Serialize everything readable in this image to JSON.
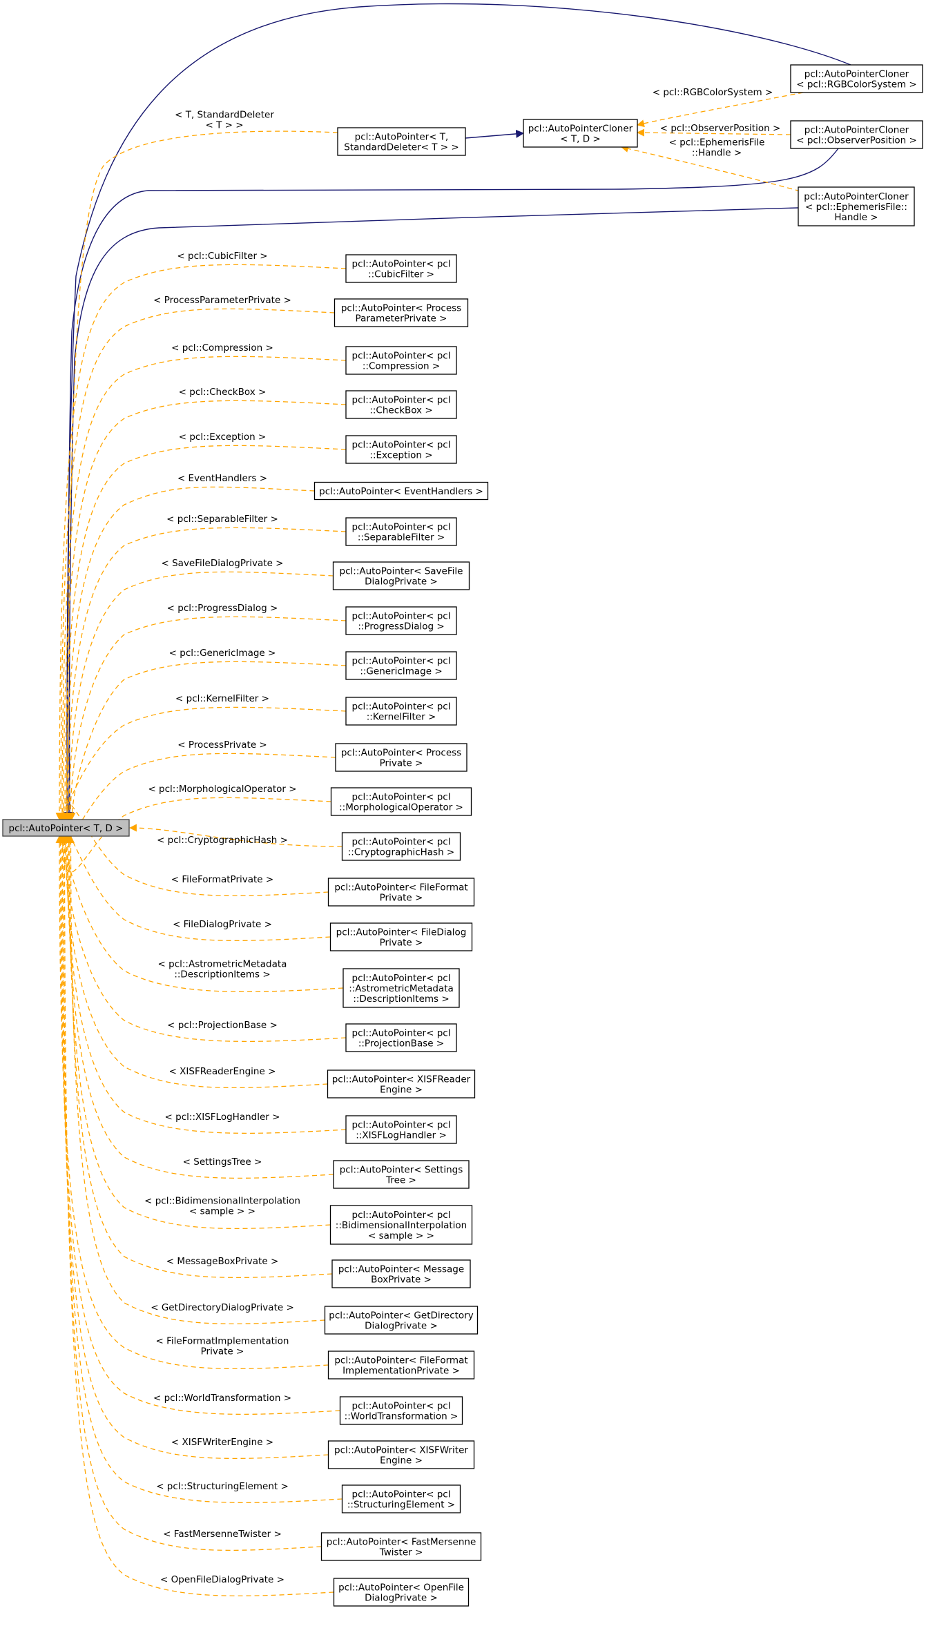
{
  "root": {
    "label": "pcl::AutoPointer< T, D >"
  },
  "cloner_base": {
    "lines": [
      "pcl::AutoPointerCloner",
      "< T, D >"
    ]
  },
  "standard_deleter": {
    "lines": [
      "pcl::AutoPointer< T,",
      "StandardDeleter< T > >"
    ],
    "edge_label": [
      "< T, StandardDeleter",
      "< T > >"
    ]
  },
  "cloners": [
    {
      "lines": [
        "pcl::AutoPointerCloner",
        "< pcl::RGBColorSystem >"
      ],
      "edge_label": [
        "< pcl::RGBColorSystem >"
      ]
    },
    {
      "lines": [
        "pcl::AutoPointerCloner",
        "< pcl::ObserverPosition >"
      ],
      "edge_label": [
        "< pcl::ObserverPosition >"
      ]
    },
    {
      "lines": [
        "pcl::AutoPointerCloner",
        "< pcl::EphemerisFile::",
        "Handle >"
      ],
      "edge_label": [
        "< pcl::EphemerisFile",
        "::Handle >"
      ]
    }
  ],
  "specializations": [
    {
      "lines": [
        "pcl::AutoPointer< pcl",
        "::CubicFilter >"
      ],
      "edge_label": [
        "< pcl::CubicFilter >"
      ]
    },
    {
      "lines": [
        "pcl::AutoPointer< Process",
        "ParameterPrivate >"
      ],
      "edge_label": [
        "< ProcessParameterPrivate >"
      ]
    },
    {
      "lines": [
        "pcl::AutoPointer< pcl",
        "::Compression >"
      ],
      "edge_label": [
        "< pcl::Compression >"
      ]
    },
    {
      "lines": [
        "pcl::AutoPointer< pcl",
        "::CheckBox >"
      ],
      "edge_label": [
        "< pcl::CheckBox >"
      ]
    },
    {
      "lines": [
        "pcl::AutoPointer< pcl",
        "::Exception >"
      ],
      "edge_label": [
        "< pcl::Exception >"
      ]
    },
    {
      "lines": [
        "pcl::AutoPointer< EventHandlers >"
      ],
      "edge_label": [
        "< EventHandlers >"
      ]
    },
    {
      "lines": [
        "pcl::AutoPointer< pcl",
        "::SeparableFilter >"
      ],
      "edge_label": [
        "< pcl::SeparableFilter >"
      ]
    },
    {
      "lines": [
        "pcl::AutoPointer< SaveFile",
        "DialogPrivate >"
      ],
      "edge_label": [
        "< SaveFileDialogPrivate >"
      ]
    },
    {
      "lines": [
        "pcl::AutoPointer< pcl",
        "::ProgressDialog >"
      ],
      "edge_label": [
        "< pcl::ProgressDialog >"
      ]
    },
    {
      "lines": [
        "pcl::AutoPointer< pcl",
        "::GenericImage >"
      ],
      "edge_label": [
        "< pcl::GenericImage >"
      ]
    },
    {
      "lines": [
        "pcl::AutoPointer< pcl",
        "::KernelFilter >"
      ],
      "edge_label": [
        "< pcl::KernelFilter >"
      ]
    },
    {
      "lines": [
        "pcl::AutoPointer< Process",
        "Private >"
      ],
      "edge_label": [
        "< ProcessPrivate >"
      ]
    },
    {
      "lines": [
        "pcl::AutoPointer< pcl",
        "::MorphologicalOperator >"
      ],
      "edge_label": [
        "< pcl::MorphologicalOperator >"
      ]
    },
    {
      "lines": [
        "pcl::AutoPointer< pcl",
        "::CryptographicHash >"
      ],
      "edge_label": [
        "< pcl::CryptographicHash >"
      ]
    },
    {
      "lines": [
        "pcl::AutoPointer< FileFormat",
        "Private >"
      ],
      "edge_label": [
        "< FileFormatPrivate >"
      ]
    },
    {
      "lines": [
        "pcl::AutoPointer< FileDialog",
        "Private >"
      ],
      "edge_label": [
        "< FileDialogPrivate >"
      ]
    },
    {
      "lines": [
        "pcl::AutoPointer< pcl",
        "::AstrometricMetadata",
        "::DescriptionItems >"
      ],
      "edge_label": [
        "< pcl::AstrometricMetadata",
        "::DescriptionItems >"
      ]
    },
    {
      "lines": [
        "pcl::AutoPointer< pcl",
        "::ProjectionBase >"
      ],
      "edge_label": [
        "< pcl::ProjectionBase >"
      ]
    },
    {
      "lines": [
        "pcl::AutoPointer< XISFReader",
        "Engine >"
      ],
      "edge_label": [
        "< XISFReaderEngine >"
      ]
    },
    {
      "lines": [
        "pcl::AutoPointer< pcl",
        "::XISFLogHandler >"
      ],
      "edge_label": [
        "< pcl::XISFLogHandler >"
      ]
    },
    {
      "lines": [
        "pcl::AutoPointer< Settings",
        "Tree >"
      ],
      "edge_label": [
        "< SettingsTree >"
      ]
    },
    {
      "lines": [
        "pcl::AutoPointer< pcl",
        "::BidimensionalInterpolation",
        "< sample > >"
      ],
      "edge_label": [
        "< pcl::BidimensionalInterpolation",
        "< sample > >"
      ]
    },
    {
      "lines": [
        "pcl::AutoPointer< Message",
        "BoxPrivate >"
      ],
      "edge_label": [
        "< MessageBoxPrivate >"
      ]
    },
    {
      "lines": [
        "pcl::AutoPointer< GetDirectory",
        "DialogPrivate >"
      ],
      "edge_label": [
        "< GetDirectoryDialogPrivate >"
      ]
    },
    {
      "lines": [
        "pcl::AutoPointer< FileFormat",
        "ImplementationPrivate >"
      ],
      "edge_label": [
        "< FileFormatImplementation",
        "Private >"
      ]
    },
    {
      "lines": [
        "pcl::AutoPointer< pcl",
        "::WorldTransformation >"
      ],
      "edge_label": [
        "< pcl::WorldTransformation >"
      ]
    },
    {
      "lines": [
        "pcl::AutoPointer< XISFWriter",
        "Engine >"
      ],
      "edge_label": [
        "< XISFWriterEngine >"
      ]
    },
    {
      "lines": [
        "pcl::AutoPointer< pcl",
        "::StructuringElement >"
      ],
      "edge_label": [
        "< pcl::StructuringElement >"
      ]
    },
    {
      "lines": [
        "pcl::AutoPointer< FastMersenne",
        "Twister >"
      ],
      "edge_label": [
        "< FastMersenneTwister >"
      ]
    },
    {
      "lines": [
        "pcl::AutoPointer< OpenFile",
        "DialogPrivate >"
      ],
      "edge_label": [
        "< OpenFileDialogPrivate >"
      ]
    }
  ],
  "colors": {
    "template_edge": "#ffa500",
    "inheritance_edge": "#191970",
    "root_fill": "#bfbfbf"
  }
}
